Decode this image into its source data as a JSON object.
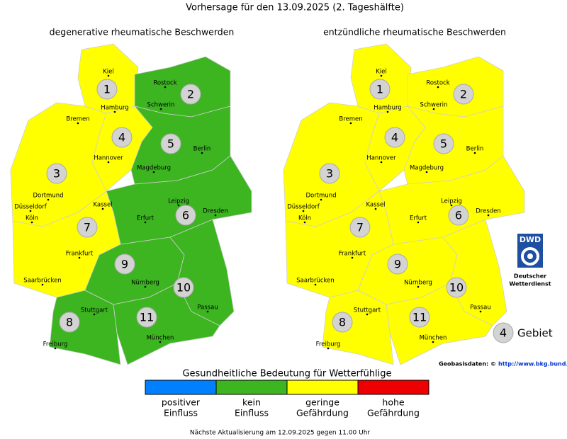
{
  "title": "Vorhersage für den 13.09.2025 (2. Tageshälfte)",
  "maps": [
    {
      "subtitle": "degenerative rheumatische Beschwerden",
      "region_colors": [
        "#ffff00",
        "#3cb521",
        "#ffff00",
        "#ffff00",
        "#3cb521",
        "#3cb521",
        "#ffff00",
        "#3cb521",
        "#3cb521",
        "#3cb521",
        "#3cb521"
      ]
    },
    {
      "subtitle": "entzündliche rheumatische Beschwerden",
      "region_colors": [
        "#ffff00",
        "#ffff00",
        "#ffff00",
        "#ffff00",
        "#ffff00",
        "#ffff00",
        "#ffff00",
        "#ffff00",
        "#ffff00",
        "#ffff00",
        "#ffff00"
      ]
    }
  ],
  "regions": [
    "1",
    "2",
    "3",
    "4",
    "5",
    "6",
    "7",
    "8",
    "9",
    "10",
    "11"
  ],
  "cities": [
    "Kiel",
    "Rostock",
    "Hamburg",
    "Schwerin",
    "Bremen",
    "Hannover",
    "Berlin",
    "Magdeburg",
    "Dortmund",
    "Düsseldorf",
    "Köln",
    "Kassel",
    "Leipzig",
    "Dresden",
    "Erfurt",
    "Frankfurt",
    "Saarbrücken",
    "Nürnberg",
    "Passau",
    "Stuttgart",
    "Freiburg",
    "München"
  ],
  "legend": {
    "title": "Gesundheitliche Bedeutung für Wetterfühlige",
    "items": [
      {
        "color": "#0080ff",
        "label": [
          "positiver",
          "Einfluss"
        ]
      },
      {
        "color": "#3cb521",
        "label": [
          "kein",
          "Einfluss"
        ]
      },
      {
        "color": "#ffff00",
        "label": [
          "geringe",
          "Gefährdung"
        ]
      },
      {
        "color": "#ee0000",
        "label": [
          "hohe",
          "Gefährdung"
        ]
      }
    ]
  },
  "region_key": {
    "number": "4",
    "label": "Gebiet"
  },
  "logo": {
    "abbr": "DWD",
    "name": [
      "Deutscher",
      "Wetterdienst"
    ]
  },
  "source": {
    "text": "Geobasisdaten: ©",
    "link": "http://www.bkg.bund.de"
  },
  "footer": "Nächste Aktualisierung am 12.09.2025 gegen 11.00 Uhr"
}
